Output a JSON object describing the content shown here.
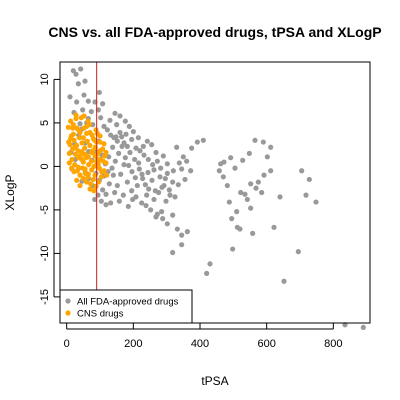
{
  "chart_data": {
    "type": "scatter",
    "title": "CNS vs. all FDA-approved drugs, tPSA and XLogP",
    "xlabel": "tPSA",
    "ylabel": "XLogP",
    "xlim": [
      -20,
      910
    ],
    "ylim": [
      -18,
      12
    ],
    "x_ticks": [
      0,
      200,
      400,
      600,
      800
    ],
    "y_ticks": [
      10,
      5,
      0,
      -5,
      -10,
      -15
    ],
    "grid": false,
    "legend_position": "bottom-left",
    "vline": {
      "x": 90,
      "color": "#cc2222"
    },
    "series": [
      {
        "name": "All FDA-approved drugs",
        "color": "#999999",
        "points": [
          [
            20,
            11
          ],
          [
            28,
            10.6
          ],
          [
            42,
            11.2
          ],
          [
            35,
            9.5
          ],
          [
            52,
            8.2
          ],
          [
            10,
            8
          ],
          [
            30,
            7.4
          ],
          [
            55,
            9.8
          ],
          [
            65,
            7.5
          ],
          [
            48,
            6.5
          ],
          [
            85,
            7.4
          ],
          [
            95,
            6.5
          ],
          [
            22,
            6.2
          ],
          [
            65,
            5.5
          ],
          [
            78,
            4.8
          ],
          [
            102,
            5.6
          ],
          [
            112,
            4.6
          ],
          [
            122,
            4.2
          ],
          [
            132,
            3.6
          ],
          [
            142,
            3.3
          ],
          [
            152,
            2.9
          ],
          [
            150,
            4.8
          ],
          [
            165,
            3.4
          ],
          [
            178,
            3.7
          ],
          [
            195,
            3.1
          ],
          [
            182,
            2.3
          ],
          [
            208,
            2.1
          ],
          [
            220,
            1.8
          ],
          [
            232,
            1.3
          ],
          [
            245,
            0.8
          ],
          [
            258,
            0.2
          ],
          [
            272,
            0.6
          ],
          [
            282,
            -0.2
          ],
          [
            290,
            1.2
          ],
          [
            302,
            -0.8
          ],
          [
            318,
            -1.8
          ],
          [
            330,
            2.2
          ],
          [
            345,
            -0.3
          ],
          [
            360,
            0.6
          ],
          [
            375,
            2.1
          ],
          [
            392,
            2.8
          ],
          [
            410,
            3.0
          ],
          [
            372,
            -0.5
          ],
          [
            355,
            -1.5
          ],
          [
            335,
            -2.1
          ],
          [
            325,
            -3.5
          ],
          [
            310,
            -3.3
          ],
          [
            298,
            -4.0
          ],
          [
            285,
            -5.2
          ],
          [
            272,
            -5.5
          ],
          [
            288,
            -6.0
          ],
          [
            302,
            -6.6
          ],
          [
            318,
            -5.6
          ],
          [
            332,
            -7.2
          ],
          [
            345,
            -7.9
          ],
          [
            362,
            -7.5
          ],
          [
            345,
            -9.0
          ],
          [
            318,
            -9.9
          ],
          [
            430,
            -11.2
          ],
          [
            420,
            -12.3
          ],
          [
            488,
            -4.1
          ],
          [
            495,
            -6.0
          ],
          [
            512,
            -7.0
          ],
          [
            522,
            -3.0
          ],
          [
            535,
            -3.2
          ],
          [
            542,
            -3.8
          ],
          [
            552,
            -4.8
          ],
          [
            558,
            -7.7
          ],
          [
            520,
            -7.2
          ],
          [
            510,
            -5.2
          ],
          [
            498,
            -9.5
          ],
          [
            482,
            -2.2
          ],
          [
            470,
            -1.2
          ],
          [
            458,
            -0.5
          ],
          [
            462,
            0.3
          ],
          [
            472,
            0.5
          ],
          [
            492,
            1.0
          ],
          [
            505,
            -0.2
          ],
          [
            528,
            0.7
          ],
          [
            548,
            1.5
          ],
          [
            565,
            3.0
          ],
          [
            590,
            2.8
          ],
          [
            602,
            1.1
          ],
          [
            612,
            -0.5
          ],
          [
            592,
            -1.0
          ],
          [
            575,
            -1.8
          ],
          [
            568,
            -2.5
          ],
          [
            585,
            -3.0
          ],
          [
            622,
            -7.0
          ],
          [
            640,
            -3.5
          ],
          [
            652,
            -13.2
          ],
          [
            695,
            -9.8
          ],
          [
            718,
            -3.3
          ],
          [
            748,
            -4.1
          ],
          [
            728,
            -1.5
          ],
          [
            705,
            -0.5
          ],
          [
            612,
            2.2
          ],
          [
            835,
            -18.2
          ],
          [
            890,
            -18.5
          ],
          [
            552,
            -2.0
          ],
          [
            182,
            -1.8
          ],
          [
            195,
            -2.8
          ],
          [
            208,
            -3.5
          ],
          [
            225,
            -4.2
          ],
          [
            238,
            -4.5
          ],
          [
            252,
            -5.0
          ],
          [
            262,
            -3.8
          ],
          [
            268,
            -5.8
          ],
          [
            172,
            0.2
          ],
          [
            162,
            -0.9
          ],
          [
            152,
            -2.2
          ],
          [
            140,
            -1.0
          ],
          [
            128,
            -2.0
          ],
          [
            118,
            -3.2
          ],
          [
            108,
            -2.7
          ],
          [
            98,
            -1.6
          ],
          [
            88,
            -0.8
          ],
          [
            78,
            -2.2
          ],
          [
            66,
            -1.4
          ],
          [
            56,
            -0.7
          ],
          [
            46,
            -1.7
          ],
          [
            36,
            -0.2
          ],
          [
            26,
            0.8
          ],
          [
            16,
            -0.3
          ],
          [
            12,
            1.6
          ],
          [
            24,
            2.6
          ],
          [
            36,
            3.6
          ],
          [
            46,
            4.3
          ],
          [
            56,
            2.7
          ],
          [
            66,
            1.7
          ],
          [
            76,
            0.7
          ],
          [
            86,
            1.7
          ],
          [
            96,
            2.9
          ],
          [
            106,
            1.3
          ],
          [
            116,
            0.3
          ],
          [
            126,
            1.1
          ],
          [
            136,
            -0.2
          ],
          [
            146,
            0.6
          ],
          [
            156,
            1.5
          ],
          [
            166,
            2.3
          ],
          [
            176,
            1.0
          ],
          [
            186,
            0.1
          ],
          [
            196,
            -0.6
          ],
          [
            206,
            -1.3
          ],
          [
            216,
            0.4
          ],
          [
            226,
            -0.9
          ],
          [
            236,
            -2.1
          ],
          [
            246,
            -2.6
          ],
          [
            256,
            -1.6
          ],
          [
            266,
            -2.8
          ],
          [
            276,
            -3.0
          ],
          [
            286,
            -2.4
          ],
          [
            296,
            -1.4
          ],
          [
            240,
            -3.3
          ],
          [
            212,
            -2.2
          ],
          [
            198,
            -3.8
          ],
          [
            185,
            -4.6
          ],
          [
            170,
            -3.3
          ],
          [
            158,
            -4.0
          ],
          [
            144,
            -3.0
          ],
          [
            132,
            -4.2
          ],
          [
            118,
            -4.4
          ],
          [
            104,
            -4.0
          ],
          [
            94,
            -3.3
          ],
          [
            84,
            -3.8
          ],
          [
            112,
            -1.1
          ],
          [
            124,
            -0.6
          ],
          [
            138,
            2.2
          ],
          [
            148,
            3.4
          ],
          [
            160,
            3.9
          ],
          [
            172,
            2.7
          ],
          [
            190,
            1.6
          ],
          [
            204,
            0.8
          ],
          [
            218,
            -0.3
          ],
          [
            228,
            -1.4
          ],
          [
            244,
            -0.7
          ],
          [
            262,
            -0.4
          ],
          [
            280,
            -1.2
          ],
          [
            292,
            -2.2
          ],
          [
            308,
            -2.7
          ],
          [
            320,
            -0.5
          ],
          [
            338,
            0.4
          ],
          [
            350,
            1.1
          ],
          [
            302,
            0.3
          ],
          [
            268,
            1.6
          ],
          [
            255,
            2.5
          ],
          [
            242,
            2.9
          ],
          [
            230,
            2.3
          ],
          [
            215,
            3.3
          ],
          [
            200,
            4.0
          ],
          [
            188,
            4.6
          ],
          [
            176,
            5.2
          ],
          [
            160,
            5.8
          ],
          [
            145,
            6.1
          ],
          [
            130,
            5.3
          ],
          [
            108,
            7.2
          ],
          [
            98,
            8.5
          ],
          [
            74,
            6.3
          ],
          [
            60,
            5.0
          ],
          [
            40,
            4.9
          ]
        ]
      },
      {
        "name": "CNS drugs",
        "color": "#ffa500",
        "points": [
          [
            5,
            4.5
          ],
          [
            12,
            5.2
          ],
          [
            20,
            4.8
          ],
          [
            28,
            5.5
          ],
          [
            36,
            4.2
          ],
          [
            44,
            5.6
          ],
          [
            52,
            4.4
          ],
          [
            60,
            3.8
          ],
          [
            68,
            4.8
          ],
          [
            76,
            3.6
          ],
          [
            84,
            3.0
          ],
          [
            92,
            3.8
          ],
          [
            100,
            2.8
          ],
          [
            108,
            2.0
          ],
          [
            114,
            1.2
          ],
          [
            118,
            0.4
          ],
          [
            112,
            -0.5
          ],
          [
            104,
            -1.2
          ],
          [
            96,
            -1.8
          ],
          [
            88,
            -2.3
          ],
          [
            80,
            -1.5
          ],
          [
            72,
            -2.0
          ],
          [
            64,
            -1.2
          ],
          [
            56,
            -0.8
          ],
          [
            48,
            -0.2
          ],
          [
            40,
            -1.0
          ],
          [
            32,
            -0.5
          ],
          [
            24,
            0.2
          ],
          [
            16,
            0.8
          ],
          [
            8,
            1.5
          ],
          [
            6,
            2.8
          ],
          [
            14,
            3.5
          ],
          [
            22,
            3.0
          ],
          [
            30,
            2.4
          ],
          [
            38,
            3.3
          ],
          [
            46,
            2.7
          ],
          [
            54,
            2.1
          ],
          [
            62,
            2.9
          ],
          [
            70,
            2.4
          ],
          [
            78,
            1.8
          ],
          [
            86,
            2.2
          ],
          [
            94,
            1.5
          ],
          [
            102,
            0.8
          ],
          [
            98,
            -0.2
          ],
          [
            90,
            0.5
          ],
          [
            82,
            0.0
          ],
          [
            74,
            0.6
          ],
          [
            66,
            0.2
          ],
          [
            58,
            1.0
          ],
          [
            50,
            0.5
          ],
          [
            42,
            1.3
          ],
          [
            34,
            1.8
          ],
          [
            26,
            1.4
          ],
          [
            18,
            2.0
          ],
          [
            10,
            2.5
          ],
          [
            15,
            -0.2
          ],
          [
            22,
            -0.6
          ],
          [
            35,
            -0.1
          ],
          [
            45,
            0.8
          ],
          [
            55,
            -0.3
          ],
          [
            65,
            -0.9
          ],
          [
            75,
            -0.4
          ],
          [
            85,
            -1.0
          ],
          [
            95,
            0.3
          ],
          [
            105,
            -0.6
          ],
          [
            110,
            0.6
          ],
          [
            100,
            1.8
          ],
          [
            90,
            2.8
          ],
          [
            80,
            3.2
          ],
          [
            70,
            3.9
          ],
          [
            60,
            4.6
          ],
          [
            50,
            3.3
          ],
          [
            40,
            3.9
          ],
          [
            30,
            4.4
          ],
          [
            20,
            3.7
          ],
          [
            12,
            3.2
          ],
          [
            25,
            2.2
          ],
          [
            35,
            1.0
          ],
          [
            45,
            1.7
          ],
          [
            55,
            1.4
          ],
          [
            65,
            1.1
          ],
          [
            75,
            1.6
          ],
          [
            85,
            1.2
          ],
          [
            92,
            0.9
          ],
          [
            60,
            -1.8
          ],
          [
            50,
            -1.4
          ],
          [
            70,
            -2.6
          ],
          [
            82,
            -2.8
          ],
          [
            40,
            -2.2
          ],
          [
            30,
            -1.6
          ],
          [
            118,
            1.6
          ],
          [
            112,
            2.6
          ],
          [
            120,
            -1.0
          ],
          [
            28,
            5.9
          ],
          [
            52,
            5.8
          ],
          [
            18,
            4.4
          ],
          [
            64,
            5.2
          ],
          [
            88,
            4.2
          ],
          [
            100,
            3.5
          ],
          [
            8,
            0.4
          ]
        ]
      }
    ]
  }
}
